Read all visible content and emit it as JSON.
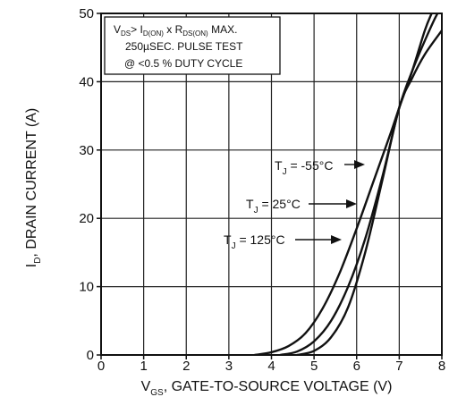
{
  "chart_data": {
    "type": "line",
    "title": "",
    "xlabel_main": "V",
    "xlabel_sub": "GS",
    "xlabel_rest": ", GATE-TO-SOURCE VOLTAGE (V)",
    "ylabel_main": "I",
    "ylabel_sub": "D",
    "ylabel_rest": ", DRAIN CURRENT (A)",
    "xlim": [
      0,
      8
    ],
    "ylim": [
      0,
      50
    ],
    "xticks": [
      "0",
      "1",
      "2",
      "3",
      "4",
      "5",
      "6",
      "7",
      "8"
    ],
    "yticks": [
      "0",
      "10",
      "20",
      "30",
      "40",
      "50"
    ],
    "grid": true,
    "series": [
      {
        "name": "TJ = -55°C",
        "label_main": "T",
        "label_sub": "J",
        "label_rest": " = -55°C",
        "x": [
          3.6,
          4.0,
          4.4,
          4.8,
          5.2,
          5.6,
          6.0,
          6.4,
          6.8,
          7.0,
          7.3,
          7.6,
          7.76
        ],
        "y": [
          0,
          0.4,
          1.3,
          3.2,
          6.8,
          12.0,
          18.5,
          25.5,
          32.5,
          36.2,
          41.5,
          47.5,
          50
        ]
      },
      {
        "name": "TJ = 25°C",
        "label_main": "T",
        "label_sub": "J",
        "label_rest": " = 25°C",
        "x": [
          4.2,
          4.6,
          5.0,
          5.4,
          5.8,
          6.2,
          6.6,
          7.0,
          7.3,
          7.6,
          7.9,
          8.0
        ],
        "y": [
          0,
          0.5,
          2.0,
          5.0,
          10.0,
          17.0,
          26.0,
          36.2,
          41.5,
          46.0,
          50,
          50
        ]
      },
      {
        "name": "TJ = 125°C",
        "label_main": "T",
        "label_sub": "J",
        "label_rest": " = 125°C",
        "x": [
          4.6,
          5.0,
          5.4,
          5.8,
          6.2,
          6.6,
          7.0,
          7.3,
          7.6,
          8.0
        ],
        "y": [
          0,
          0.6,
          2.6,
          7.0,
          15.0,
          25.5,
          36.2,
          40.5,
          44.0,
          47.5
        ]
      }
    ],
    "annotation": {
      "line1": {
        "v": "V",
        "v_sub": "DS",
        "mid": "> I",
        "i_sub": "D(ON)",
        "x": " x R",
        "r_sub": "DS(ON)",
        "tail": " MAX."
      },
      "line2": "250µSEC. PULSE TEST",
      "line3": "@ <0.5 % DUTY CYCLE"
    }
  }
}
